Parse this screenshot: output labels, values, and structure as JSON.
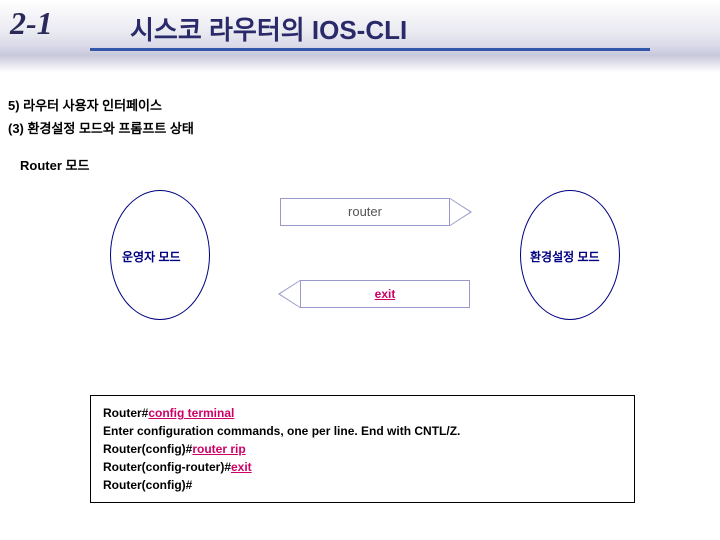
{
  "header": {
    "chapter": "2-1",
    "title": "시스코 라우터의 IOS-CLI"
  },
  "subtitles": {
    "line1": "5) 라우터 사용자 인터페이스",
    "line2": "(3) 환경설정 모드와 프롬프트 상태"
  },
  "section": "Router 모드",
  "diagram": {
    "left_mode": "운영자 모드",
    "right_mode": "환경설정 모드",
    "arrow_top": "router",
    "arrow_bottom": "exit",
    "ellipse_border_color": "#000080",
    "arrow_border_color": "#9999cc",
    "command_color": "#cc0066"
  },
  "terminal": {
    "lines": [
      {
        "prefix": "Router#",
        "cmd": "config terminal",
        "is_cmd": true
      },
      {
        "prefix": "Enter configuration commands, one per line.  End with CNTL/Z.",
        "cmd": "",
        "is_cmd": false
      },
      {
        "prefix": "Router(config)#",
        "cmd": "router rip",
        "is_cmd": true
      },
      {
        "prefix": "Router(config-router)#",
        "cmd": "exit",
        "is_cmd": true
      },
      {
        "prefix": "Router(config)#",
        "cmd": "",
        "is_cmd": false
      }
    ]
  }
}
